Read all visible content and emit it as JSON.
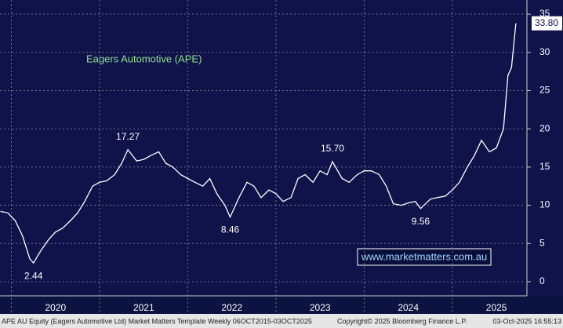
{
  "chart_data": {
    "type": "line",
    "title": "Eagers Automotive (APE)",
    "x": [
      2019.875,
      2019.958,
      2020.042,
      2020.125,
      2020.208,
      2020.25,
      2020.33,
      2020.42,
      2020.5,
      2020.58,
      2020.67,
      2020.75,
      2020.83,
      2020.92,
      2021.0,
      2021.08,
      2021.17,
      2021.25,
      2021.32,
      2021.42,
      2021.5,
      2021.58,
      2021.67,
      2021.75,
      2021.83,
      2021.92,
      2022.0,
      2022.08,
      2022.17,
      2022.25,
      2022.33,
      2022.42,
      2022.48,
      2022.58,
      2022.67,
      2022.75,
      2022.83,
      2022.92,
      2023.0,
      2023.08,
      2023.17,
      2023.25,
      2023.33,
      2023.42,
      2023.5,
      2023.58,
      2023.64,
      2023.75,
      2023.83,
      2023.92,
      2024.0,
      2024.08,
      2024.17,
      2024.25,
      2024.33,
      2024.42,
      2024.5,
      2024.58,
      2024.64,
      2024.75,
      2024.83,
      2024.92,
      2025.0,
      2025.08,
      2025.17,
      2025.25,
      2025.33,
      2025.42,
      2025.5,
      2025.58,
      2025.63,
      2025.67,
      2025.72
    ],
    "series": [
      {
        "name": "APE",
        "color": "#ffffff",
        "values": [
          9.2,
          9.0,
          8.0,
          6.0,
          3.0,
          2.44,
          4.0,
          5.5,
          6.5,
          7.0,
          8.0,
          9.0,
          10.5,
          12.5,
          13.0,
          13.2,
          14.0,
          15.5,
          17.27,
          15.8,
          16.0,
          16.5,
          17.0,
          15.5,
          15.0,
          14.0,
          13.5,
          13.0,
          12.5,
          13.5,
          11.5,
          10.0,
          8.46,
          11.0,
          13.0,
          12.5,
          11.0,
          12.0,
          11.5,
          10.5,
          11.0,
          13.5,
          14.0,
          13.0,
          14.5,
          14.0,
          15.7,
          13.5,
          13.0,
          14.0,
          14.5,
          14.5,
          14.0,
          12.5,
          10.2,
          10.0,
          10.3,
          10.5,
          9.56,
          10.8,
          11.0,
          11.2,
          12.0,
          13.0,
          15.0,
          16.5,
          18.5,
          17.0,
          17.5,
          20.0,
          27.0,
          28.0,
          33.8
        ],
        "value_labels": [
          null,
          null,
          null,
          null,
          null,
          "2.44",
          null,
          null,
          null,
          null,
          null,
          null,
          null,
          null,
          null,
          null,
          null,
          null,
          "17.27",
          null,
          null,
          null,
          null,
          null,
          null,
          null,
          null,
          null,
          null,
          null,
          null,
          null,
          "8.46",
          null,
          null,
          null,
          null,
          null,
          null,
          null,
          null,
          null,
          null,
          null,
          null,
          null,
          "15.70",
          null,
          null,
          null,
          null,
          null,
          null,
          null,
          null,
          null,
          null,
          null,
          "9.56",
          null,
          null,
          null,
          null,
          null,
          null,
          null,
          null,
          null,
          null,
          null,
          null,
          null,
          "33.80"
        ]
      }
    ],
    "xlim": [
      2019.87,
      2025.81
    ],
    "xticks": [
      {
        "value": 2020,
        "label": "2020"
      },
      {
        "value": 2021,
        "label": "2021"
      },
      {
        "value": 2022,
        "label": "2022"
      },
      {
        "value": 2023,
        "label": "2023"
      },
      {
        "value": 2024,
        "label": "2024"
      },
      {
        "value": 2025,
        "label": "2025"
      }
    ],
    "ylim": [
      -1.85,
      36.85
    ],
    "yticks": [
      0,
      5,
      10,
      15,
      20,
      25,
      30,
      35
    ],
    "grid": true,
    "watermark": "www.marketmatters.com.au",
    "footer": [
      "APE AU Equity (Eagers Automotive Ltd) Market Matters Template Weekly 06OCT2015-03OCT2025",
      "Copyright© 2025 Bloomberg Finance L.P.",
      "03-Oct-2025 16:55:13"
    ]
  }
}
